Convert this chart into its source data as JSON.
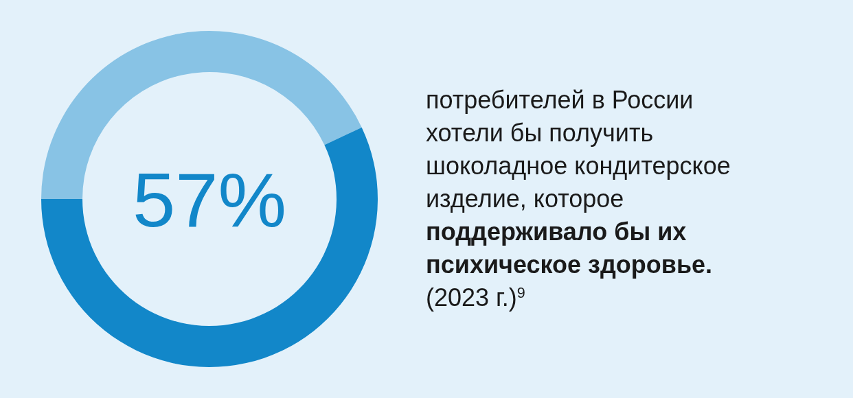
{
  "chart_data": {
    "type": "donut",
    "categories": [
      null,
      null
    ],
    "values": [
      43,
      57
    ],
    "colors": [
      "#88c3e5",
      "#1287c9"
    ],
    "value_labels": [
      null,
      "57%"
    ],
    "title": "потребителей в России хотели бы получить шоколадное кондитерское изделие, которое",
    "subtitle": "поддерживало бы их психическое здоровье.",
    "annotations": [
      "(2023 г.)$^{9}$"
    ]
  }
}
